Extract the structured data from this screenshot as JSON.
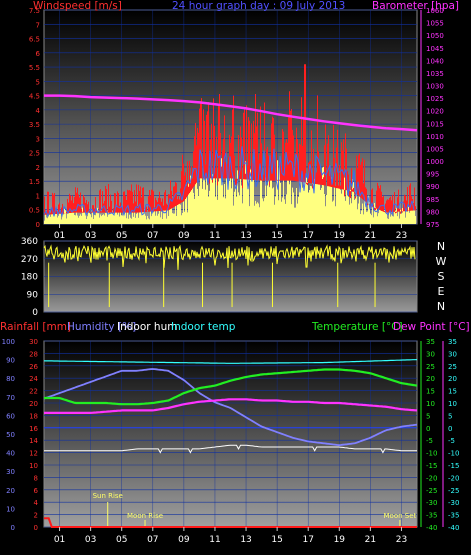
{
  "title": "24 hour graph day : 09 July 2013",
  "colors": {
    "wind_avg": "#3a6df0",
    "wind_gust": "#ff2020",
    "wind_calm": "#ffff80",
    "barometer": "#ff33ff",
    "direction": "#ffff33",
    "rain": "#ff1a1a",
    "humidity": "#8080ff",
    "indoor_hum": "#ffffff",
    "indoor_temp": "#33ffff",
    "temperature": "#22ee22",
    "dew_point": "#ff33ff",
    "axis_left": "#ff3030",
    "axis_right": "#ff33ff",
    "grid": "#1030a0"
  },
  "panels": {
    "wind": {
      "left_label": "Windspeed [m/s]",
      "right_label": "Barometer [hpa]"
    },
    "direction": {
      "right_labels": [
        "N",
        "W",
        "S",
        "E",
        "N"
      ]
    },
    "temp": {
      "rain_label": "Rainfall [mm]",
      "hum_label": "Humidity [%]",
      "indoor_hum_label": "Indoor hum",
      "indoor_temp_label": "Indoor temp",
      "temp_label": "Temperature [°C]",
      "dew_label": "Dew Point [°C]",
      "events": [
        {
          "label": "Sun Rise",
          "hour": 4.1,
          "color": "#ffff66"
        },
        {
          "label": "Moon Rise",
          "hour": 6.5,
          "color": "#ffff66"
        },
        {
          "label": "Moon Set",
          "hour": 22.9,
          "color": "#ffff66"
        }
      ]
    }
  },
  "chart_data": [
    {
      "type": "line",
      "name": "wind_barometer",
      "x_hours": [
        0,
        24
      ],
      "x_tick_labels": [
        "01",
        "03",
        "05",
        "07",
        "09",
        "11",
        "13",
        "15",
        "17",
        "19",
        "21",
        "23"
      ],
      "y_left_ticks": [
        "0",
        "0.5",
        "1",
        "1.5",
        "2",
        "2.5",
        "3",
        "3.5",
        "4",
        "4.5",
        "5",
        "5.5",
        "6",
        "6.5",
        "7",
        "7.5"
      ],
      "y_left_range": [
        0,
        7.5
      ],
      "y_right_ticks": [
        "975",
        "980",
        "985",
        "990",
        "995",
        "1000",
        "1005",
        "1010",
        "1015",
        "1020",
        "1025",
        "1030",
        "1035",
        "1040",
        "1045",
        "1050",
        "1055",
        "1060"
      ],
      "y_right_range": [
        975,
        1060
      ],
      "barometer": {
        "hours": [
          0,
          1,
          2,
          3,
          4,
          5,
          6,
          7,
          8,
          9,
          10,
          11,
          12,
          13,
          14,
          15,
          16,
          17,
          18,
          19,
          20,
          21,
          22,
          23,
          24
        ],
        "values": [
          1026,
          1026,
          1025.8,
          1025.4,
          1025.2,
          1025,
          1024.8,
          1024.5,
          1024.2,
          1023.8,
          1023.3,
          1022.6,
          1021.8,
          1020.9,
          1019.8,
          1018.6,
          1017.6,
          1016.7,
          1015.8,
          1015,
          1014.3,
          1013.6,
          1013,
          1012.7,
          1012.2
        ]
      },
      "gust_envelope": {
        "hours": [
          0,
          1,
          2,
          3,
          4,
          5,
          6,
          7,
          8,
          8.8,
          9.5,
          10.5,
          11.5,
          12.5,
          13.5,
          14.5,
          15.5,
          16.5,
          17.5,
          18.5,
          19.5,
          20.5,
          21.2,
          22,
          23,
          24
        ],
        "typical_max": [
          1.0,
          0.9,
          1.1,
          1.0,
          1.2,
          1.0,
          1.3,
          1.1,
          1.2,
          2.0,
          3.5,
          3.8,
          3.6,
          3.4,
          3.6,
          3.3,
          3.5,
          3.4,
          3.1,
          3.0,
          2.7,
          2.2,
          1.3,
          1.1,
          1.0,
          1.5
        ]
      },
      "avg_envelope": {
        "hours": [
          0,
          2,
          4,
          6,
          8,
          9,
          10,
          12,
          14,
          16,
          18,
          20,
          21,
          22,
          24
        ],
        "typical": [
          0.4,
          0.5,
          0.5,
          0.5,
          0.6,
          1.0,
          2.0,
          2.0,
          1.9,
          1.9,
          1.7,
          1.4,
          0.8,
          0.5,
          0.6
        ]
      },
      "peak_gust": 5.6
    },
    {
      "type": "scatter",
      "name": "wind_direction",
      "x_hours": [
        0,
        24
      ],
      "y_ticks": [
        "0",
        "90",
        "180",
        "270",
        "360"
      ],
      "y_range": [
        0,
        360
      ],
      "typical_direction_deg": 300
    },
    {
      "type": "line",
      "name": "temperature_humidity",
      "x_hours": [
        0,
        24
      ],
      "x_tick_labels": [
        "01",
        "03",
        "05",
        "07",
        "09",
        "11",
        "13",
        "15",
        "17",
        "19",
        "21",
        "23"
      ],
      "y_humidity_ticks": [
        "0",
        "10",
        "20",
        "30",
        "40",
        "50",
        "60",
        "70",
        "80",
        "90",
        "100"
      ],
      "y_rain_ticks": [
        "0",
        "2",
        "4",
        "6",
        "8",
        "10",
        "12",
        "14",
        "16",
        "18",
        "20",
        "22",
        "24",
        "26",
        "28",
        "30"
      ],
      "y_temp_ticks": [
        "35",
        "30",
        "25",
        "20",
        "15",
        "10",
        "5",
        "0",
        "-5",
        "-10",
        "-15",
        "-20",
        "-25",
        "-30",
        "-35",
        "-40"
      ],
      "y_temp_range": [
        -40,
        35
      ],
      "series": [
        {
          "name": "Humidity",
          "hours": [
            0,
            1,
            2,
            3,
            4,
            5,
            6,
            7,
            8,
            9,
            10,
            11,
            12,
            13,
            14,
            15,
            16,
            17,
            18,
            19,
            20,
            21,
            22,
            23,
            24
          ],
          "values": [
            69,
            72,
            75,
            78,
            81,
            84,
            84,
            85,
            84,
            79,
            72,
            67,
            64,
            59,
            54,
            51,
            48,
            46,
            45,
            44,
            45,
            48,
            52,
            54,
            55
          ]
        },
        {
          "name": "Indoor hum",
          "hours": [
            0,
            1,
            2,
            3,
            4,
            5,
            6,
            7,
            8,
            9,
            10,
            11,
            12,
            13,
            14,
            15,
            16,
            17,
            18,
            19,
            20,
            21,
            22,
            23,
            24
          ],
          "values": [
            41,
            41,
            41,
            41,
            41,
            41,
            42,
            42,
            42,
            42,
            42,
            43,
            44,
            44,
            43,
            43,
            43,
            43,
            43,
            43,
            42,
            42,
            42,
            41,
            41
          ]
        },
        {
          "name": "Indoor temp",
          "hours": [
            0,
            6,
            12,
            18,
            24
          ],
          "values": [
            27,
            26.5,
            26,
            26.3,
            27.5
          ]
        },
        {
          "name": "Temperature",
          "hours": [
            0,
            1,
            2,
            3,
            4,
            5,
            6,
            7,
            8,
            9,
            10,
            11,
            12,
            13,
            14,
            15,
            16,
            17,
            18,
            19,
            20,
            21,
            22,
            23,
            24
          ],
          "values": [
            12,
            12,
            10,
            10,
            10,
            9.5,
            9.5,
            10,
            11,
            14,
            16,
            17,
            19,
            20.5,
            21.5,
            22,
            22.5,
            23,
            23.5,
            23.5,
            23,
            22,
            20,
            18,
            17
          ]
        },
        {
          "name": "Dew Point",
          "hours": [
            0,
            1,
            2,
            3,
            4,
            5,
            6,
            7,
            8,
            9,
            10,
            11,
            12,
            13,
            14,
            15,
            16,
            17,
            18,
            19,
            20,
            21,
            22,
            23,
            24
          ],
          "values": [
            6,
            6,
            6,
            6,
            6.5,
            7,
            7,
            7,
            8,
            9.5,
            10.5,
            11,
            11.5,
            11.5,
            11,
            11,
            10.5,
            10.5,
            10,
            10,
            9.5,
            9,
            8.5,
            7.5,
            7
          ]
        },
        {
          "name": "Rainfall",
          "hours": [
            0,
            0.3,
            0.5,
            24
          ],
          "values": [
            1.4,
            1.4,
            0,
            0
          ]
        }
      ]
    }
  ]
}
